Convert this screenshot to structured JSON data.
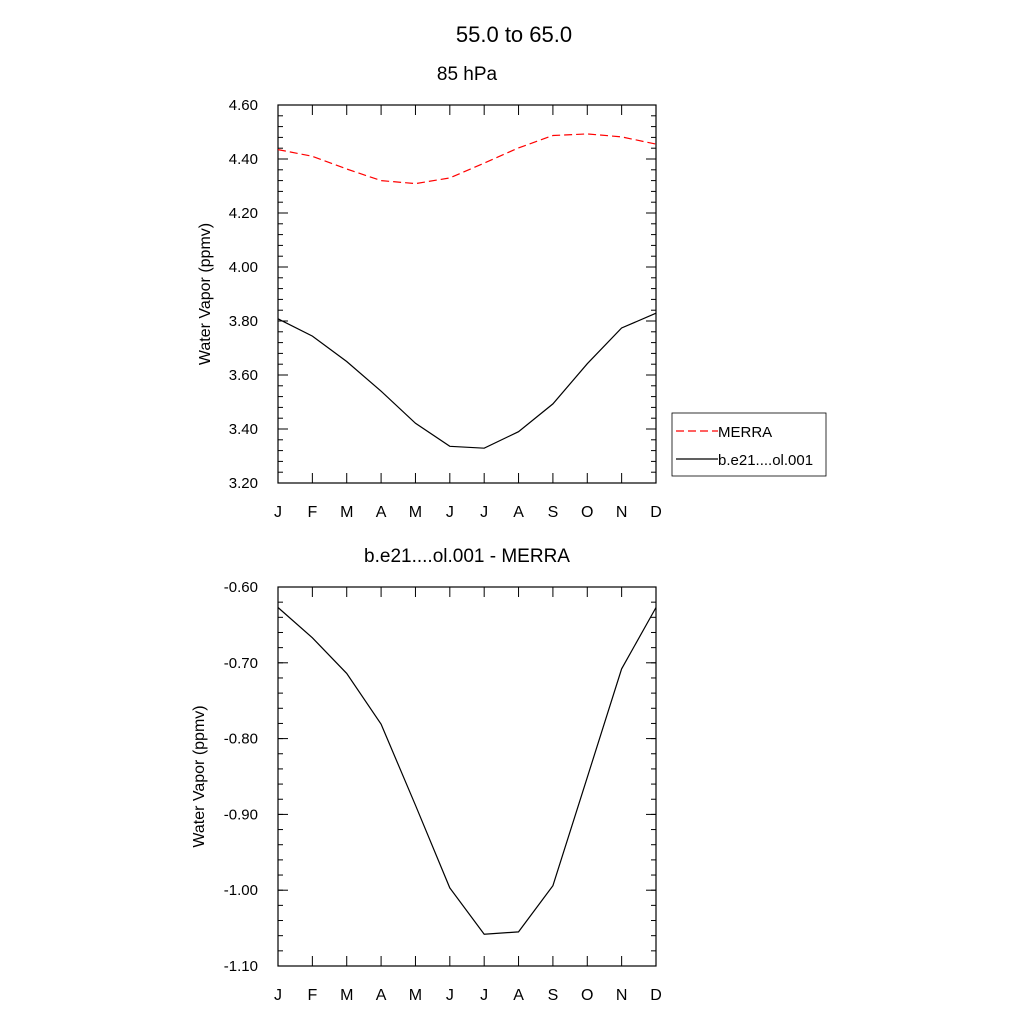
{
  "figure": {
    "title": "55.0 to  65.0"
  },
  "chart_data": [
    {
      "type": "line",
      "title": "85 hPa",
      "xlabel": "",
      "ylabel": "Water Vapor (ppmv)",
      "categories": [
        "J",
        "F",
        "M",
        "A",
        "M",
        "J",
        "J",
        "A",
        "S",
        "O",
        "N",
        "D"
      ],
      "ylim": [
        3.2,
        4.6
      ],
      "yticks": [
        "4.60",
        "4.40",
        "4.20",
        "4.00",
        "3.80",
        "3.60",
        "3.40",
        "3.20"
      ],
      "ytick_values": [
        4.6,
        4.4,
        4.2,
        4.0,
        3.8,
        3.6,
        3.4,
        3.2
      ],
      "grid": false,
      "legend_position": "right",
      "series": [
        {
          "name": "MERRA",
          "color": "#ff0000",
          "dash": "dashed",
          "values": [
            4.435,
            4.41,
            4.363,
            4.32,
            4.309,
            4.33,
            4.385,
            4.441,
            4.487,
            4.493,
            4.482,
            4.455
          ]
        },
        {
          "name": "b.e21....ol.001",
          "color": "#000000",
          "dash": "solid",
          "values": [
            3.808,
            3.744,
            3.65,
            3.54,
            3.421,
            3.336,
            3.329,
            3.39,
            3.493,
            3.642,
            3.774,
            3.829
          ]
        }
      ]
    },
    {
      "type": "line",
      "title": "b.e21....ol.001 - MERRA",
      "xlabel": "",
      "ylabel": "Water Vapor (ppmv)",
      "categories": [
        "J",
        "F",
        "M",
        "A",
        "M",
        "J",
        "J",
        "A",
        "S",
        "O",
        "N",
        "D"
      ],
      "ylim": [
        -1.1,
        -0.6
      ],
      "yticks": [
        "-0.60",
        "-0.70",
        "-0.80",
        "-0.90",
        "-1.00",
        "-1.10"
      ],
      "ytick_values": [
        -0.6,
        -0.7,
        -0.8,
        -0.9,
        -1.0,
        -1.1
      ],
      "grid": false,
      "series": [
        {
          "color": "#000000",
          "dash": "solid",
          "values": [
            -0.627,
            -0.667,
            -0.714,
            -0.781,
            -0.888,
            -0.997,
            -1.058,
            -1.055,
            -0.994,
            -0.851,
            -0.708,
            -0.627
          ]
        }
      ]
    }
  ]
}
